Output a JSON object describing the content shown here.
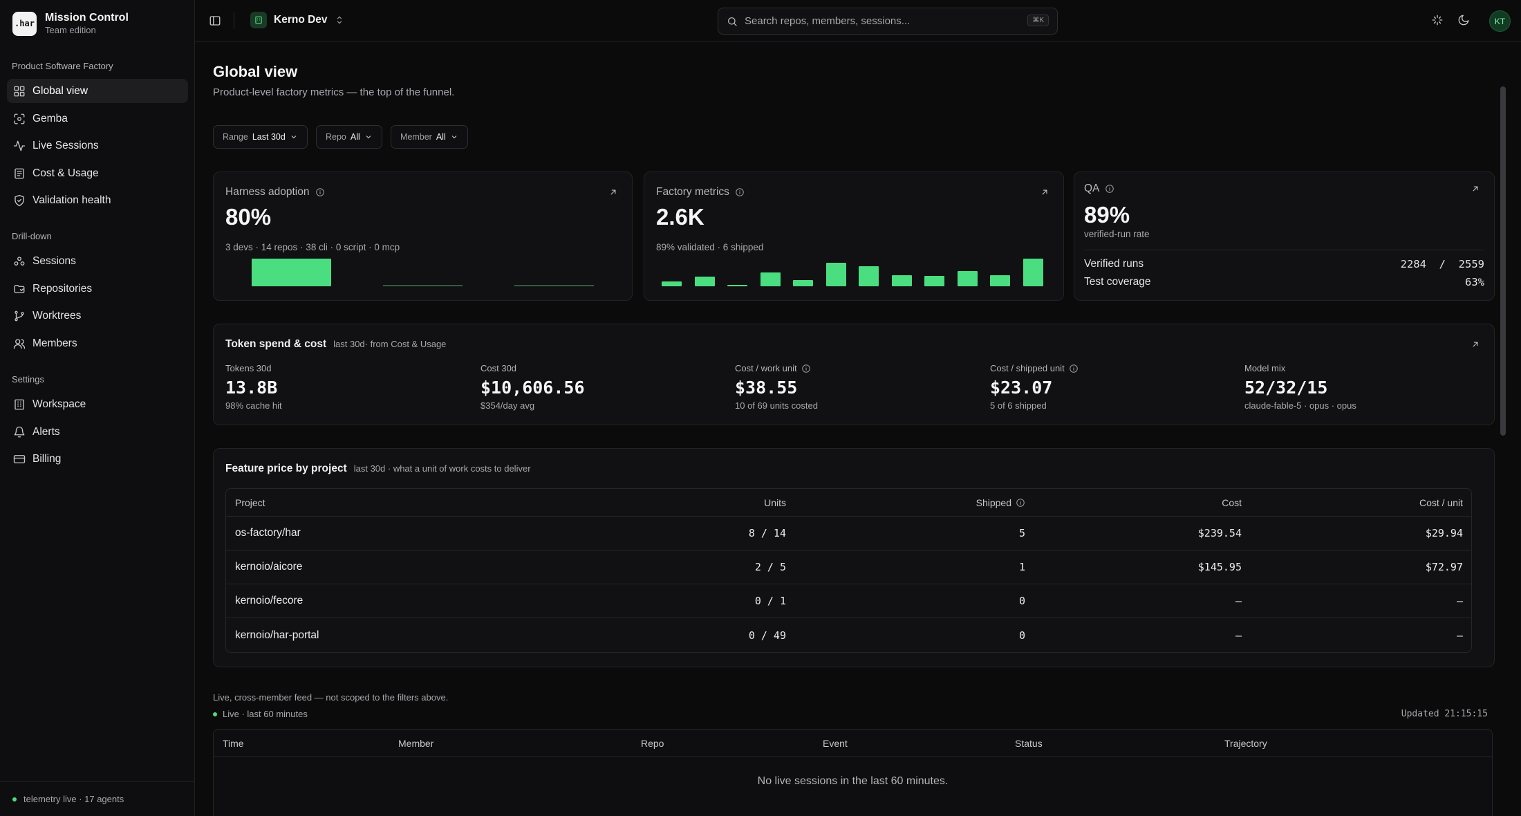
{
  "app": {
    "logo": ".har",
    "name": "Mission Control",
    "edition": "Team edition"
  },
  "sidebar": {
    "sections": [
      {
        "title": "Product Software Factory",
        "items": [
          {
            "label": "Global view",
            "icon": "grid-icon",
            "active": true
          },
          {
            "label": "Gemba",
            "icon": "focus-icon"
          },
          {
            "label": "Live Sessions",
            "icon": "activity-icon"
          },
          {
            "label": "Cost & Usage",
            "icon": "receipt-icon"
          },
          {
            "label": "Validation health",
            "icon": "shield-check-icon"
          }
        ]
      },
      {
        "title": "Drill-down",
        "items": [
          {
            "label": "Sessions",
            "icon": "sessions-icon"
          },
          {
            "label": "Repositories",
            "icon": "folder-icon"
          },
          {
            "label": "Worktrees",
            "icon": "branch-icon"
          },
          {
            "label": "Members",
            "icon": "users-icon"
          }
        ]
      },
      {
        "title": "Settings",
        "items": [
          {
            "label": "Workspace",
            "icon": "building-icon"
          },
          {
            "label": "Alerts",
            "icon": "bell-icon"
          },
          {
            "label": "Billing",
            "icon": "card-icon"
          }
        ]
      }
    ],
    "footer": "telemetry live · 17 agents"
  },
  "topbar": {
    "workspace": "Kerno Dev",
    "search_placeholder": "Search repos, members, sessions...",
    "search_shortcut": "⌘K",
    "avatar": "KT"
  },
  "page": {
    "title": "Global view",
    "subtitle": "Product-level factory metrics — the top of the funnel.",
    "filters": [
      {
        "label": "Range",
        "value": "Last 30d"
      },
      {
        "label": "Repo",
        "value": "All"
      },
      {
        "label": "Member",
        "value": "All"
      }
    ]
  },
  "cards": {
    "harness": {
      "title": "Harness adoption",
      "value": "80%",
      "meta": "3 devs · 14 repos · 38 cli · 0 script · 0 mcp",
      "bars": [
        38,
        0,
        0
      ]
    },
    "factory": {
      "title": "Factory metrics",
      "value": "2.6K",
      "meta": "89% validated · 6 shipped",
      "bars": [
        7,
        13,
        1,
        19,
        9,
        32,
        28,
        15,
        14,
        21,
        15,
        38
      ]
    },
    "qa": {
      "title": "QA",
      "value": "89%",
      "meta": "verified-run rate",
      "rows": [
        {
          "label": "Verified runs",
          "value": "2284  /  2559"
        },
        {
          "label": "Test coverage",
          "value": "63%"
        }
      ]
    }
  },
  "token_spend": {
    "title": "Token spend & cost",
    "subtitle": "last 30d· from Cost & Usage",
    "cols": [
      {
        "label": "Tokens 30d",
        "value": "13.8B",
        "sub": "98% cache hit",
        "info": false
      },
      {
        "label": "Cost 30d",
        "value": "$10,606.56",
        "sub": "$354/day avg",
        "info": false
      },
      {
        "label": "Cost / work unit",
        "value": "$38.55",
        "sub": "10 of 69 units costed",
        "info": true
      },
      {
        "label": "Cost / shipped unit",
        "value": "$23.07",
        "sub": "5 of 6 shipped",
        "info": true
      },
      {
        "label": "Model mix",
        "value": "52/32/15",
        "sub": "claude-fable-5 · opus · opus",
        "info": false
      }
    ]
  },
  "feature_price": {
    "title": "Feature price by project",
    "subtitle": "last 30d · what a unit of work costs to deliver",
    "headers": {
      "project": "Project",
      "units": "Units",
      "shipped": "Shipped",
      "cost": "Cost",
      "cpu": "Cost / unit"
    },
    "rows": [
      {
        "project": "os-factory/har",
        "units": "8 / 14",
        "shipped": "5",
        "cost": "$239.54",
        "cpu": "$29.94"
      },
      {
        "project": "kernoio/aicore",
        "units": "2 / 5",
        "shipped": "1",
        "cost": "$145.95",
        "cpu": "$72.97"
      },
      {
        "project": "kernoio/fecore",
        "units": "0 / 1",
        "shipped": "0",
        "cost": "–",
        "cpu": "–"
      },
      {
        "project": "kernoio/har-portal",
        "units": "0 / 49",
        "shipped": "0",
        "cost": "–",
        "cpu": "–"
      }
    ]
  },
  "live": {
    "note": "Live, cross-member feed — not scoped to the filters above.",
    "indicator": "Live · last 60 minutes",
    "updated": "Updated 21:15:15",
    "headers": [
      "Time",
      "Member",
      "Repo",
      "Event",
      "Status",
      "Trajectory"
    ],
    "empty": "No live sessions in the last 60 minutes."
  },
  "colors": {
    "accent": "#4ade80",
    "bg": "#0b0b0c",
    "card": "#111113"
  }
}
